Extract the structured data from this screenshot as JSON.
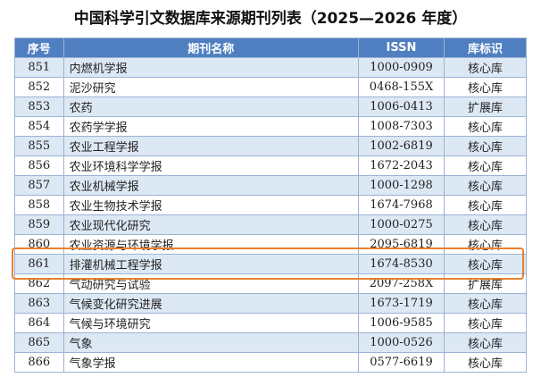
{
  "title": "中国科学引文数据库来源期刊列表（2025—2026 年度）",
  "table": {
    "headers": [
      "序号",
      "期刊名称",
      "ISSN",
      "库标识"
    ],
    "rows": [
      [
        "851",
        "内燃机学报",
        "1000-0909",
        "核心库"
      ],
      [
        "852",
        "泥沙研究",
        "0468-155X",
        "核心库"
      ],
      [
        "853",
        "农药",
        "1006-0413",
        "扩展库"
      ],
      [
        "854",
        "农药学学报",
        "1008-7303",
        "核心库"
      ],
      [
        "855",
        "农业工程学报",
        "1002-6819",
        "核心库"
      ],
      [
        "856",
        "农业环境科学学报",
        "1672-2043",
        "核心库"
      ],
      [
        "857",
        "农业机械学报",
        "1000-1298",
        "核心库"
      ],
      [
        "858",
        "农业生物技术学报",
        "1674-7968",
        "核心库"
      ],
      [
        "859",
        "农业现代化研究",
        "1000-0275",
        "核心库"
      ],
      [
        "860",
        "农业资源与环境学报",
        "2095-6819",
        "核心库"
      ],
      [
        "861",
        "排灌机械工程学报",
        "1674-8530",
        "核心库"
      ],
      [
        "862",
        "气动研究与试验",
        "2097-258X",
        "扩展库"
      ],
      [
        "863",
        "气候变化研究进展",
        "1673-1719",
        "核心库"
      ],
      [
        "864",
        "气候与环境研究",
        "1006-9585",
        "核心库"
      ],
      [
        "865",
        "气象",
        "1000-0526",
        "核心库"
      ],
      [
        "866",
        "气象学报",
        "0577-6619",
        "核心库"
      ]
    ]
  }
}
